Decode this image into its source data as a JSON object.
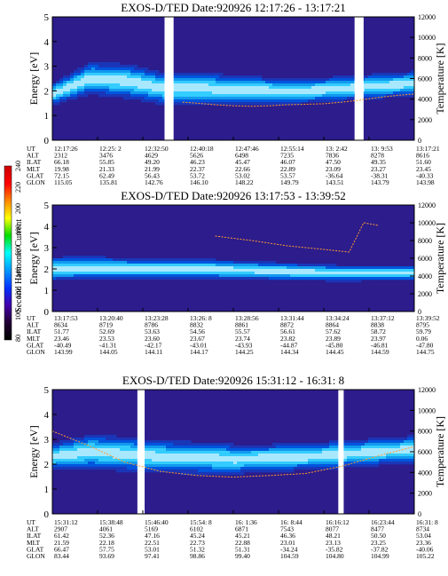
{
  "colorbar": {
    "label": "Second Harmonic Current",
    "ticks": [
      "240",
      "220",
      "200",
      "180",
      "160",
      "140",
      "120",
      "100",
      "80"
    ],
    "gradient": [
      "#cc0000",
      "#ff0000",
      "#ff8800",
      "#ffff00",
      "#00dd00",
      "#00ffff",
      "#0099ff",
      "#0033ff",
      "#4400aa",
      "#220033",
      "#000000"
    ]
  },
  "chart_data": [
    {
      "type": "heatmap",
      "title": "EXOS-D/TED   Date:920926  12:17:26 - 13:17:21",
      "ylabel": "Energy [eV]",
      "y2label": "Temperature [K]",
      "ylim": [
        0,
        5
      ],
      "y2lim": [
        0,
        12000
      ],
      "yticks": [
        "0",
        "1",
        "2",
        "3",
        "4",
        "5"
      ],
      "y2ticks": [
        "0",
        "2000",
        "4000",
        "6000",
        "8000",
        "10000",
        "12000"
      ],
      "row_labels": [
        "UT",
        "ALT",
        "ILAT",
        "MLT",
        "GLAT",
        "GLON"
      ],
      "columns": [
        [
          "12:17:26",
          "2312",
          "66.18",
          "19.98",
          "72.15",
          "115.05"
        ],
        [
          "12:25: 2",
          "3476",
          "55.85",
          "21.33",
          "62.49",
          "135.81"
        ],
        [
          "12:32:50",
          "4629",
          "49.20",
          "21.99",
          "56.43",
          "142.76"
        ],
        [
          "12:40:18",
          "5626",
          "46.23",
          "22.37",
          "53.72",
          "146.10"
        ],
        [
          "12:47:46",
          "6498",
          "45.47",
          "22.66",
          "53.02",
          "148.22"
        ],
        [
          "12:55:14",
          "7235",
          "46.07",
          "22.89",
          "53.57",
          "149.79"
        ],
        [
          "13: 2:42",
          "7836",
          "47.50",
          "23.09",
          "-36.64",
          "143.51"
        ],
        [
          "13: 9:53",
          "8278",
          "49.35",
          "23.27",
          "-38.31",
          "143.79"
        ],
        [
          "13:17:21",
          "8616",
          "51.60",
          "23.45",
          "-40.33",
          "143.98"
        ]
      ],
      "temperature_curve": {
        "x": [
          0.36,
          0.4,
          0.45,
          0.5,
          0.55,
          0.6,
          0.65,
          0.7,
          0.75,
          0.8,
          0.85,
          0.9,
          0.95,
          1.0
        ],
        "y": [
          3700,
          3600,
          3450,
          3350,
          3300,
          3350,
          3450,
          3500,
          3550,
          3700,
          3900,
          4150,
          4350,
          4500
        ]
      },
      "band": {
        "x": [
          0,
          0.1,
          0.2,
          0.3,
          0.4,
          0.5,
          0.6,
          0.7,
          0.8,
          0.9,
          1.0
        ],
        "center": [
          1.9,
          2.5,
          2.4,
          2.1,
          2.1,
          2.05,
          2.0,
          2.0,
          2.1,
          2.2,
          2.3
        ],
        "width": [
          0.9,
          1.3,
          1.4,
          1.3,
          1.3,
          1.2,
          1.1,
          1.0,
          1.0,
          1.0,
          1.0
        ]
      },
      "gaps": [
        0.31,
        0.335,
        0.835,
        0.86
      ]
    },
    {
      "type": "heatmap",
      "title": "EXOS-D/TED   Date:920926  13:17:53 - 13:39:52",
      "ylabel": "Energy [eV]",
      "y2label": "Temperature [K]",
      "ylim": [
        0,
        5
      ],
      "y2lim": [
        0,
        12000
      ],
      "yticks": [
        "0",
        "1",
        "2",
        "3",
        "4",
        "5"
      ],
      "y2ticks": [
        "0",
        "2000",
        "4000",
        "6000",
        "8000",
        "10000",
        "12000"
      ],
      "row_labels": [
        "UT",
        "ALT",
        "ILAT",
        "MLT",
        "GLAT",
        "GLON"
      ],
      "columns": [
        [
          "13:17:53",
          "8634",
          "51.77",
          "23.46",
          "-40.49",
          "143.99"
        ],
        [
          "13:20:40",
          "8719",
          "52.69",
          "23.53",
          "-41.31",
          "144.05"
        ],
        [
          "13:23:28",
          "8786",
          "53.63",
          "23.60",
          "-42.17",
          "144.11"
        ],
        [
          "13:26: 8",
          "8832",
          "54.56",
          "23.67",
          "-43.01",
          "144.17"
        ],
        [
          "13:28:56",
          "8861",
          "55.57",
          "23.74",
          "-43.93",
          "144.25"
        ],
        [
          "13:31:44",
          "8872",
          "56.61",
          "23.82",
          "-44.87",
          "144.34"
        ],
        [
          "13:34:24",
          "8864",
          "57.62",
          "23.89",
          "-45.80",
          "144.45"
        ],
        [
          "13:37:12",
          "8838",
          "58.72",
          "23.97",
          "-46.81",
          "144.59"
        ],
        [
          "13:39:52",
          "8795",
          "59.79",
          "0.06",
          "-47.80",
          "144.75"
        ]
      ],
      "temperature_curve": {
        "x": [
          0.45,
          0.55,
          0.65,
          0.75,
          0.82,
          0.86,
          0.9
        ],
        "y": [
          8500,
          8000,
          7400,
          7000,
          6700,
          10000,
          9700
        ]
      },
      "band": {
        "x": [
          0,
          0.1,
          0.2,
          0.3,
          0.4,
          0.5,
          0.6,
          0.7,
          0.8,
          0.9,
          1.0
        ],
        "center": [
          2.0,
          2.05,
          2.0,
          2.0,
          2.0,
          1.95,
          1.9,
          1.85,
          1.8,
          1.8,
          1.8
        ],
        "width": [
          1.1,
          1.1,
          1.0,
          1.0,
          0.95,
          0.9,
          0.85,
          0.8,
          0.75,
          0.7,
          0.7
        ]
      },
      "gaps": []
    },
    {
      "type": "heatmap",
      "title": "EXOS-D/TED   Date:920926  15:31:12 - 16:31: 8",
      "ylabel": "Energy [eV]",
      "y2label": "Temperature [K]",
      "ylim": [
        0,
        5
      ],
      "y2lim": [
        0,
        12000
      ],
      "yticks": [
        "0",
        "1",
        "2",
        "3",
        "4",
        "5"
      ],
      "y2ticks": [
        "0",
        "2000",
        "4000",
        "6000",
        "8000",
        "10000",
        "12000"
      ],
      "row_labels": [
        "UT",
        "ALT",
        "ILAT",
        "MLT",
        "GLAT",
        "GLON"
      ],
      "columns": [
        [
          "15:31:12",
          "2907",
          "61.42",
          "21.59",
          "66.47",
          "83.44"
        ],
        [
          "15:38:48",
          "4061",
          "52.36",
          "22.18",
          "57.75",
          "93.69"
        ],
        [
          "15:46:40",
          "5169",
          "47.16",
          "22.51",
          "53.01",
          "97.41"
        ],
        [
          "15:54: 8",
          "6102",
          "45.24",
          "22.73",
          "51.32",
          "98.86"
        ],
        [
          "16: 1:36",
          "6871",
          "45.21",
          "22.88",
          "51.31",
          "99.40"
        ],
        [
          "16: 8:44",
          "7543",
          "46.36",
          "23.01",
          "-34.24",
          "104.59"
        ],
        [
          "16:16:12",
          "8077",
          "48.21",
          "23.13",
          "-35.82",
          "104.80"
        ],
        [
          "16:23:44",
          "8477",
          "50.50",
          "23.25",
          "-37.82",
          "104.99"
        ],
        [
          "16:31: 8",
          "8734",
          "53.04",
          "23.36",
          "-40.06",
          "105.22"
        ]
      ],
      "temperature_curve": {
        "x": [
          0,
          0.1,
          0.2,
          0.3,
          0.4,
          0.5,
          0.6,
          0.7,
          0.8,
          0.9,
          1.0
        ],
        "y": [
          8000,
          6600,
          5000,
          4100,
          3700,
          3550,
          3700,
          3900,
          4600,
          5600,
          6500
        ]
      },
      "band": {
        "x": [
          0,
          0.1,
          0.2,
          0.3,
          0.4,
          0.5,
          0.6,
          0.7,
          0.8,
          0.9,
          1.0
        ],
        "center": [
          2.3,
          2.5,
          2.4,
          2.3,
          2.25,
          2.2,
          2.25,
          2.3,
          2.4,
          2.5,
          2.6
        ],
        "width": [
          1.1,
          1.4,
          1.4,
          1.3,
          1.3,
          1.2,
          1.1,
          1.1,
          1.1,
          1.1,
          1.1
        ]
      },
      "gaps": [
        0.235,
        0.255,
        0.79,
        0.805
      ]
    }
  ]
}
